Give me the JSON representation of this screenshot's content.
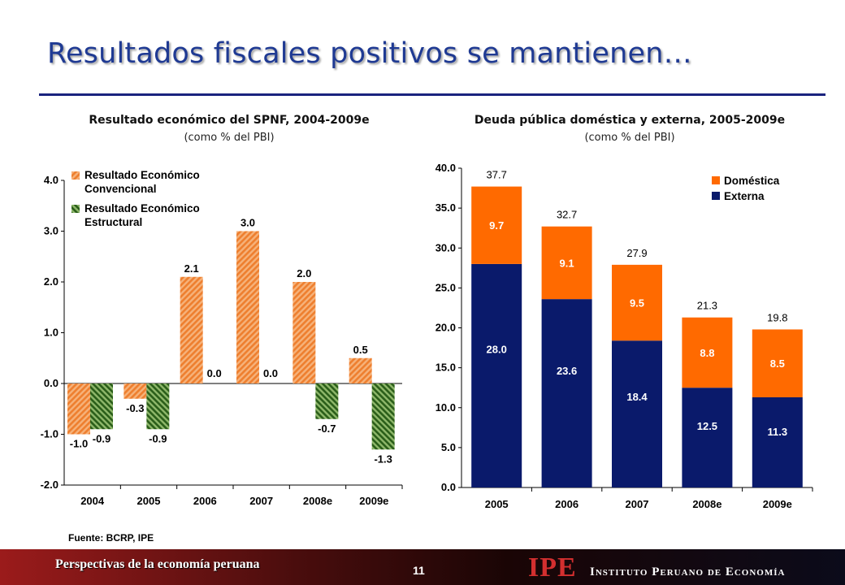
{
  "slide": {
    "title": "Resultados fiscales positivos se mantienen…",
    "source": "Fuente: BCRP, IPE",
    "footer_text": "Perspectivas de la economía peruana",
    "page_number": "11",
    "logo_text": "IPE",
    "institute_name": "Instituto Peruano de Economía"
  },
  "colors": {
    "title": "#1f3a93",
    "convencional": "#f08a3c",
    "estructural": "#2e6b1f",
    "domestica": "#ff6a00",
    "externa": "#0a1a6b"
  },
  "chart_data": [
    {
      "type": "bar",
      "title": "Resultado económico del SPNF, 2004-2009e",
      "subtitle": "(como % del PBI)",
      "categories": [
        "2004",
        "2005",
        "2006",
        "2007",
        "2008e",
        "2009e"
      ],
      "series": [
        {
          "name": "Resultado Económico Convencional",
          "legend_lines": [
            "Resultado Económico",
            "Convencional"
          ],
          "values": [
            -1.0,
            -0.3,
            2.1,
            3.0,
            2.0,
            0.5
          ],
          "labels": [
            "-1.0",
            "-0.3",
            "2.1",
            "3.0",
            "2.0",
            "0.5"
          ]
        },
        {
          "name": "Resultado Económico Estructural",
          "legend_lines": [
            "Resultado Económico",
            "Estructural"
          ],
          "values": [
            -0.9,
            -0.9,
            0.0,
            0.0,
            -0.7,
            -1.3
          ],
          "labels": [
            "-0.9",
            "-0.9",
            "0.0",
            "0.0",
            "-0.7",
            "-1.3"
          ]
        }
      ],
      "ylim": [
        -2.0,
        4.0
      ],
      "yticks": [
        "-2.0",
        "-1.0",
        "0.0",
        "1.0",
        "2.0",
        "3.0",
        "4.0"
      ],
      "legend_position": "top-left",
      "grid": false
    },
    {
      "type": "bar",
      "stacked": true,
      "title": "Deuda pública doméstica y externa, 2005-2009e",
      "subtitle": "(como % del PBI)",
      "categories": [
        "2005",
        "2006",
        "2007",
        "2008e",
        "2009e"
      ],
      "series": [
        {
          "name": "Externa",
          "values": [
            28.0,
            23.6,
            18.4,
            12.5,
            11.3
          ],
          "labels": [
            "28.0",
            "23.6",
            "18.4",
            "12.5",
            "11.3"
          ]
        },
        {
          "name": "Doméstica",
          "values": [
            9.7,
            9.1,
            9.5,
            8.8,
            8.5
          ],
          "labels": [
            "9.7",
            "9.1",
            "9.5",
            "8.8",
            "8.5"
          ]
        }
      ],
      "totals": [
        "37.7",
        "32.7",
        "27.9",
        "21.3",
        "19.8"
      ],
      "ylim": [
        0.0,
        40.0
      ],
      "yticks": [
        "0.0",
        "5.0",
        "10.0",
        "15.0",
        "20.0",
        "25.0",
        "30.0",
        "35.0",
        "40.0"
      ],
      "legend_position": "top-right",
      "grid": false
    }
  ]
}
